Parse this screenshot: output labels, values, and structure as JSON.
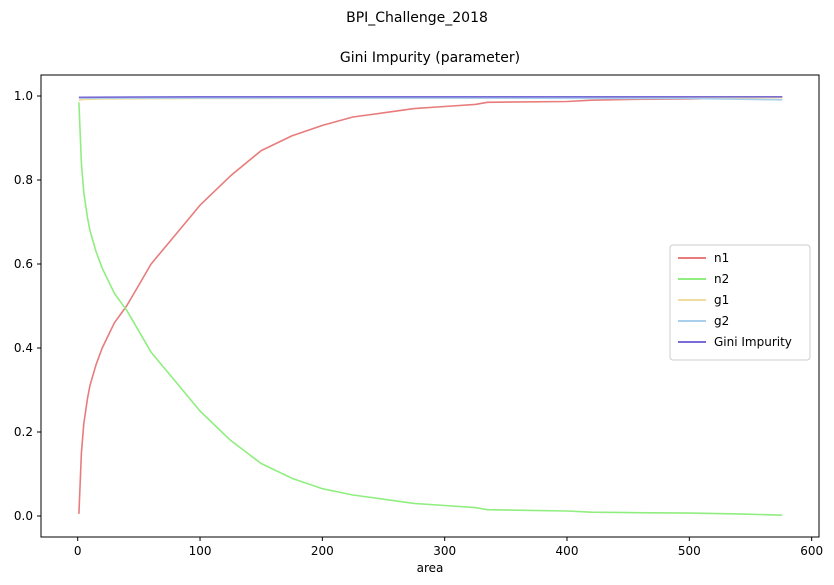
{
  "figure": {
    "suptitle": "BPI_Challenge_2018"
  },
  "chart_data": {
    "type": "line",
    "title": "Gini Impurity (parameter)",
    "xlabel": "area",
    "ylabel": "",
    "xlim": [
      -30,
      606
    ],
    "ylim": [
      -0.05,
      1.05
    ],
    "xticks": [
      0,
      100,
      200,
      300,
      400,
      500,
      600
    ],
    "yticks": [
      0.0,
      0.2,
      0.4,
      0.6,
      0.8,
      1.0
    ],
    "xtick_labels": [
      "0",
      "100",
      "200",
      "300",
      "400",
      "500",
      "600"
    ],
    "ytick_labels": [
      "0.0",
      "0.2",
      "0.4",
      "0.6",
      "0.8",
      "1.0"
    ],
    "grid": false,
    "legend_position": "center-right",
    "series": [
      {
        "name": "n1",
        "color": "#e87c7c",
        "x": [
          1,
          3,
          5,
          8,
          10,
          15,
          20,
          25,
          30,
          35,
          40,
          50,
          60,
          80,
          100,
          125,
          150,
          175,
          200,
          225,
          250,
          275,
          300,
          325,
          335,
          400,
          420,
          450,
          500,
          540,
          576
        ],
        "y": [
          0.005,
          0.15,
          0.22,
          0.28,
          0.31,
          0.36,
          0.4,
          0.43,
          0.46,
          0.48,
          0.5,
          0.55,
          0.6,
          0.67,
          0.74,
          0.81,
          0.87,
          0.905,
          0.93,
          0.95,
          0.96,
          0.97,
          0.975,
          0.98,
          0.985,
          0.987,
          0.99,
          0.992,
          0.993,
          0.995,
          0.997
        ]
      },
      {
        "name": "n2",
        "color": "#90ee80",
        "x": [
          1,
          3,
          5,
          8,
          10,
          15,
          20,
          25,
          30,
          35,
          40,
          50,
          60,
          80,
          100,
          125,
          150,
          175,
          200,
          225,
          250,
          275,
          300,
          325,
          335,
          400,
          420,
          450,
          500,
          540,
          576
        ],
        "y": [
          0.985,
          0.84,
          0.77,
          0.71,
          0.68,
          0.63,
          0.59,
          0.56,
          0.53,
          0.51,
          0.49,
          0.44,
          0.39,
          0.32,
          0.25,
          0.18,
          0.125,
          0.09,
          0.065,
          0.05,
          0.04,
          0.03,
          0.025,
          0.02,
          0.015,
          0.012,
          0.009,
          0.008,
          0.007,
          0.005,
          0.002
        ]
      },
      {
        "name": "g1",
        "color": "#f0dc9c",
        "x": [
          1,
          5,
          20,
          100,
          300,
          500,
          576
        ],
        "y": [
          0.99,
          0.992,
          0.993,
          0.994,
          0.995,
          0.995,
          0.996
        ]
      },
      {
        "name": "g2",
        "color": "#a8d0ec",
        "x": [
          1,
          100,
          300,
          500,
          576
        ],
        "y": [
          0.995,
          0.995,
          0.995,
          0.994,
          0.991
        ]
      },
      {
        "name": "Gini Impurity",
        "color": "#7a6cd6",
        "x": [
          1,
          100,
          200,
          300,
          400,
          500,
          576
        ],
        "y": [
          0.997,
          0.998,
          0.998,
          0.998,
          0.998,
          0.998,
          0.998
        ]
      }
    ]
  }
}
